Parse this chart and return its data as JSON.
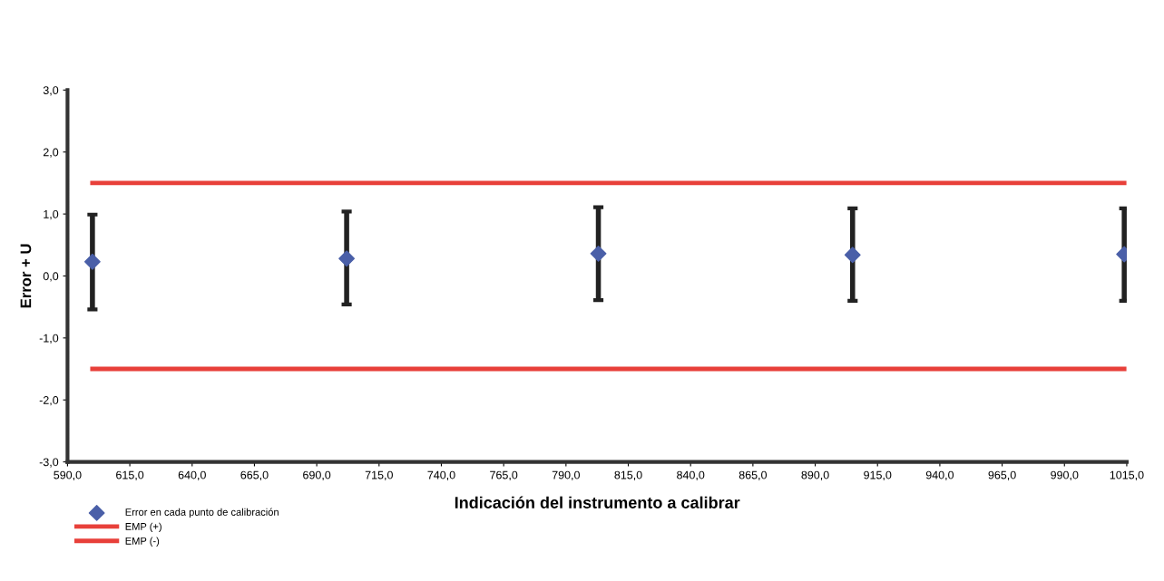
{
  "chart_data": {
    "type": "scatter",
    "xlabel": "Indicación del instrumento a calibrar",
    "ylabel": "Error + U",
    "xlim": [
      590,
      1015
    ],
    "xticks": [
      {
        "value": 590,
        "label": "590,0"
      },
      {
        "value": 615,
        "label": "615,0"
      },
      {
        "value": 640,
        "label": "640,0"
      },
      {
        "value": 665,
        "label": "665,0"
      },
      {
        "value": 690,
        "label": "690,0"
      },
      {
        "value": 715,
        "label": "715,0"
      },
      {
        "value": 740,
        "label": "740,0"
      },
      {
        "value": 765,
        "label": "765,0"
      },
      {
        "value": 790,
        "label": "790,0"
      },
      {
        "value": 815,
        "label": "815,0"
      },
      {
        "value": 840,
        "label": "840,0"
      },
      {
        "value": 865,
        "label": "865,0"
      },
      {
        "value": 890,
        "label": "890,0"
      },
      {
        "value": 915,
        "label": "915,0"
      },
      {
        "value": 940,
        "label": "940,0"
      },
      {
        "value": 965,
        "label": "965,0"
      },
      {
        "value": 990,
        "label": "990,0"
      },
      {
        "value": 1015,
        "label": "1015,0"
      }
    ],
    "ylim": [
      -3,
      3
    ],
    "yticks": [
      {
        "value": -3,
        "label": "-3,0"
      },
      {
        "value": -2,
        "label": "-2,0"
      },
      {
        "value": -1,
        "label": "-1,0"
      },
      {
        "value": 0,
        "label": "0,0"
      },
      {
        "value": 1,
        "label": "1,0"
      },
      {
        "value": 2,
        "label": "2,0"
      },
      {
        "value": 3,
        "label": "3,0"
      }
    ],
    "legend": "bottom left",
    "grid": false,
    "series": [
      {
        "name": "Error en cada punto de calibración",
        "marker": "diamond",
        "color": "#4a5fa8",
        "x": [
          600,
          702,
          803,
          905,
          1014
        ],
        "values": [
          0.23,
          0.28,
          0.36,
          0.34,
          0.35
        ],
        "errors": [
          [
            -0.54,
            0.99
          ],
          [
            -0.46,
            1.04
          ],
          [
            -0.39,
            1.11
          ],
          [
            -0.4,
            1.09
          ],
          [
            -0.4,
            1.09
          ]
        ]
      },
      {
        "name": "EMP (+)",
        "type": "line",
        "color": "#e8403a",
        "x": [
          600,
          1014
        ],
        "values": [
          1.5,
          1.5
        ]
      },
      {
        "name": "EMP (-)",
        "type": "line",
        "color": "#e8403a",
        "x": [
          600,
          1014
        ],
        "values": [
          -1.5,
          -1.5
        ]
      }
    ]
  }
}
